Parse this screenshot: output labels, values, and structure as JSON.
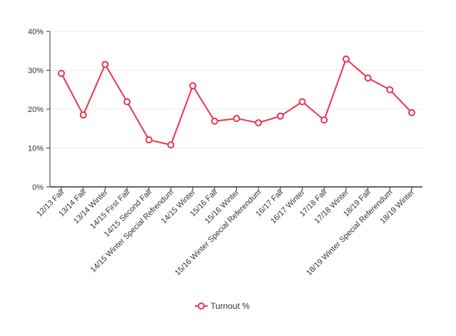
{
  "chart_data": {
    "type": "line",
    "title": "",
    "xlabel": "",
    "ylabel": "",
    "categories": [
      "12/13 Fall",
      "13/14 Fall",
      "13/14 Winter",
      "14/15 First Fall",
      "14/15 Second Fall",
      "14/15 Winter Special Refrendum",
      "14/15 Winter",
      "15/16 Fall",
      "15/16 Winter",
      "15/16 Winter Special Referendum",
      "16/17 Fall",
      "16/17 Winter",
      "17/18 Fall",
      "17/18 Winter",
      "18/19 Fall",
      "18/19 Winter Special Referendum",
      "18/19 Winter"
    ],
    "series": [
      {
        "name": "Turnout %",
        "color": "#e8364f",
        "values": [
          29.2,
          18.5,
          31.5,
          21.9,
          12.1,
          10.8,
          26.0,
          16.9,
          17.6,
          16.5,
          18.2,
          21.9,
          17.2,
          32.9,
          28.0,
          25.0,
          19.1
        ]
      }
    ],
    "ylim": [
      0,
      40
    ],
    "y_ticks": [
      0,
      10,
      20,
      30,
      40
    ],
    "y_tick_format": "percent",
    "grid": true,
    "legend_position": "bottom-center"
  }
}
